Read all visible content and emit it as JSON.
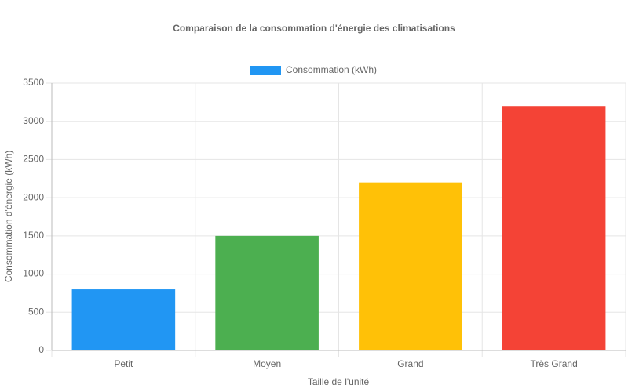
{
  "chart_data": {
    "type": "bar",
    "title": "Comparaison de la consommation d'énergie des climatisations",
    "x_label": "Taille de l'unité",
    "y_label": "Consommation d'énergie (kWh)",
    "categories": [
      "Petit",
      "Moyen",
      "Grand",
      "Très Grand"
    ],
    "series": [
      {
        "name": "Consommation (kWh)",
        "colors": [
          "#2196f3",
          "#4caf50",
          "#ffc107",
          "#f44336"
        ],
        "values": [
          800,
          1500,
          2200,
          3200
        ]
      }
    ],
    "ylim": [
      0,
      3500
    ],
    "yticks": [
      0,
      500,
      1000,
      1500,
      2000,
      2500,
      3000,
      3500
    ],
    "grid": true,
    "legend": "top"
  }
}
